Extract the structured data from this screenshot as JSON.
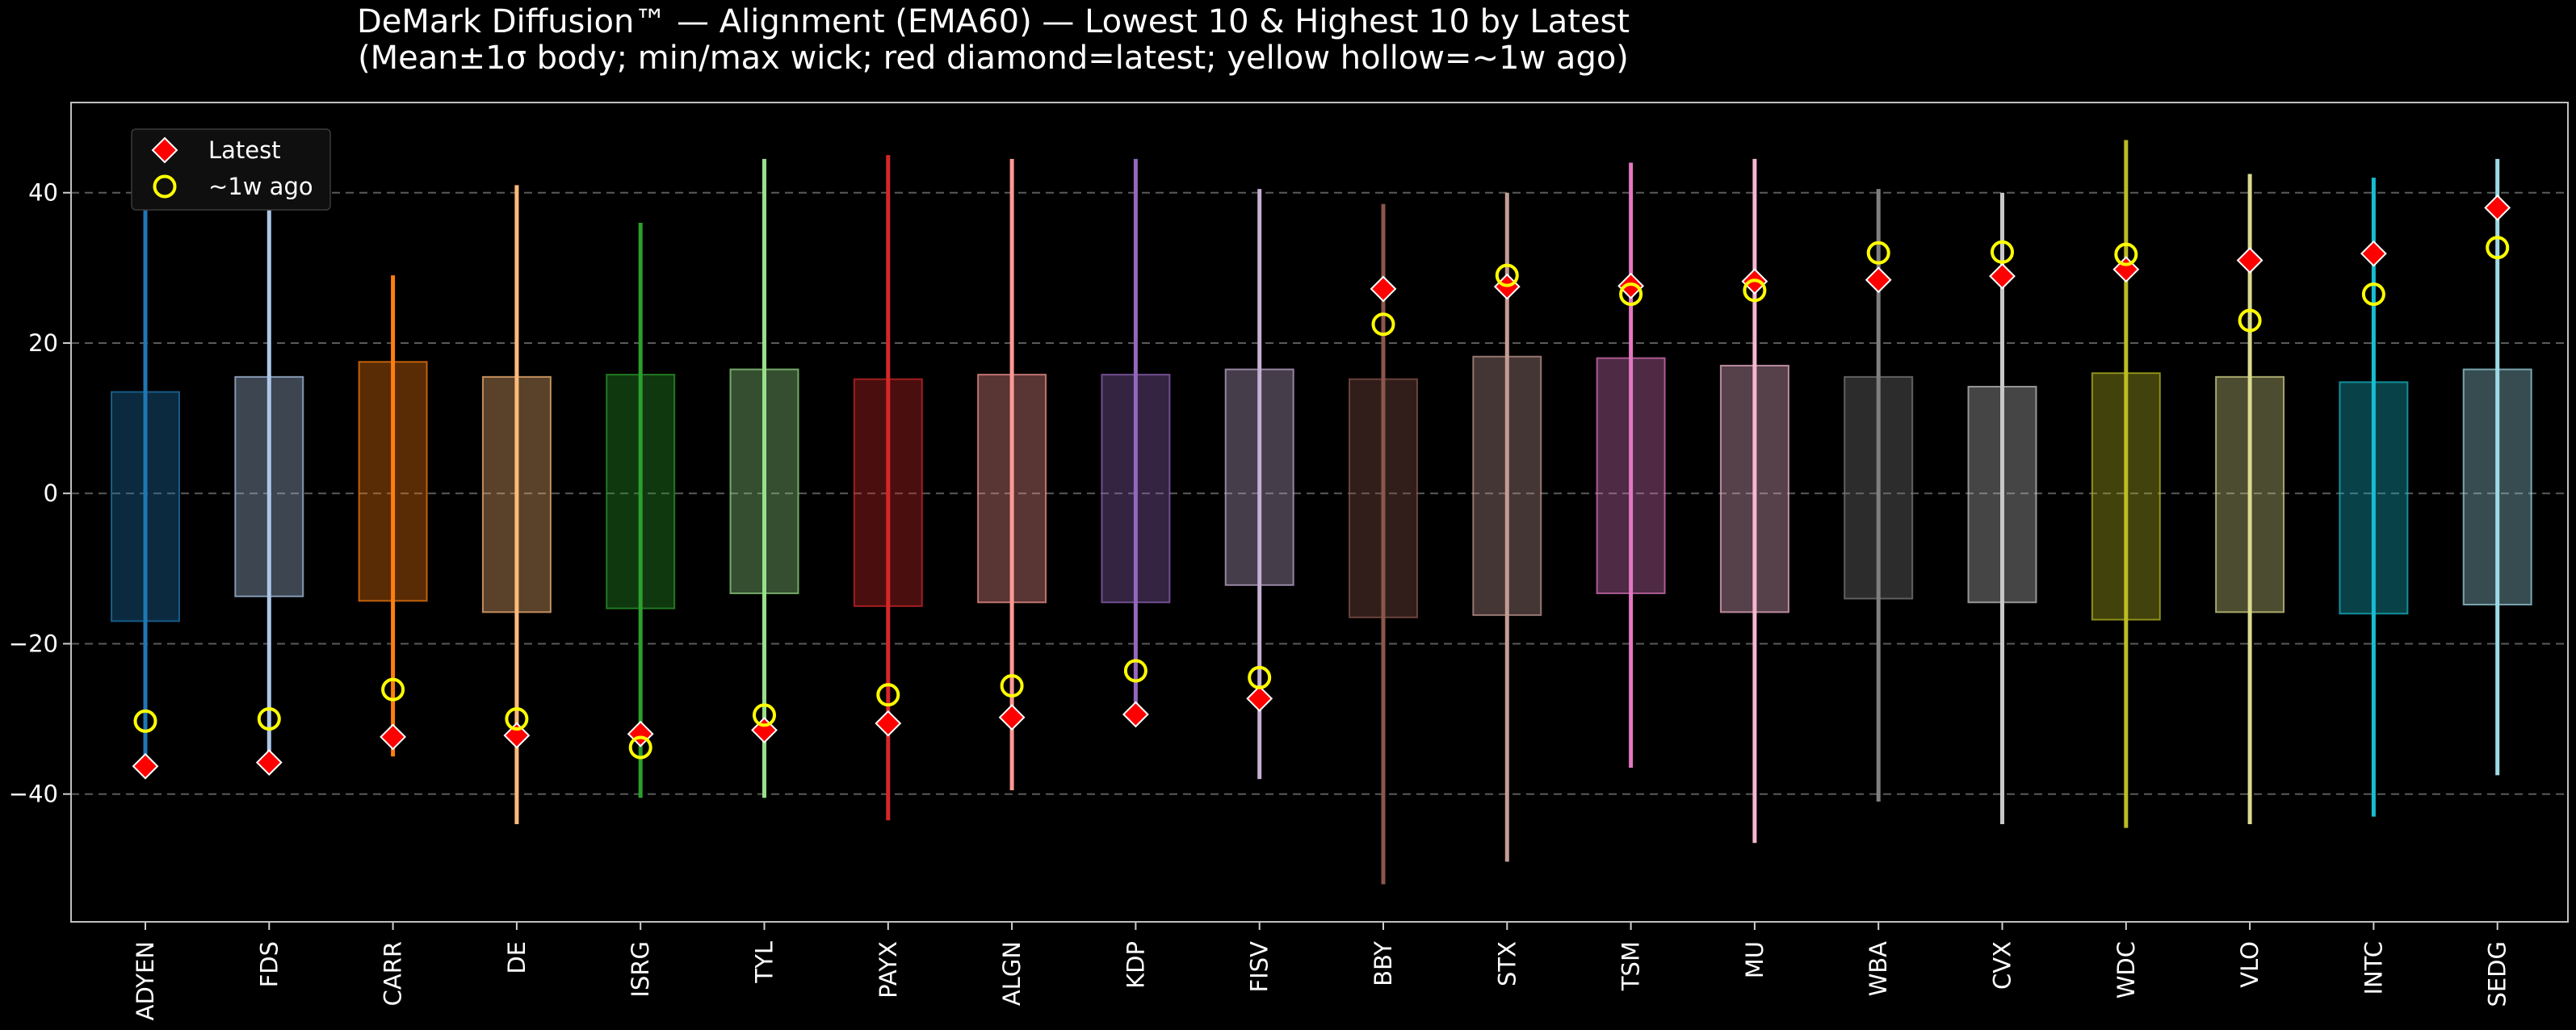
{
  "chart_data": {
    "type": "box",
    "title": "DeMark Diffusion™ — Alignment (EMA60) — Lowest 10 & Highest 10 by Latest",
    "subtitle": "(Mean±1σ body; min/max wick; red diamond=latest; yellow hollow=~1w ago)",
    "xlabel": "",
    "ylabel": "",
    "ylim": [
      -57,
      52
    ],
    "yticks": [
      -40,
      -20,
      0,
      20,
      40
    ],
    "grid": true,
    "legend_position": "top-left",
    "legend": [
      {
        "label": "Latest",
        "marker": "red-diamond"
      },
      {
        "label": "~1w ago",
        "marker": "yellow-hollow-circle"
      }
    ],
    "categories": [
      "ADYEN",
      "FDS",
      "CARR",
      "DE",
      "ISRG",
      "TYL",
      "PAYX",
      "ALGN",
      "KDP",
      "FISV",
      "BBY",
      "STX",
      "TSM",
      "MU",
      "WBA",
      "CVX",
      "WDC",
      "VLO",
      "INTC",
      "SEDG"
    ],
    "series": [
      {
        "ticker": "ADYEN",
        "color": "#1f77b4",
        "min": -36,
        "max": 38,
        "body_low": -17,
        "body_high": 13.5,
        "latest": -36.3,
        "week_ago": -30.3
      },
      {
        "ticker": "FDS",
        "color": "#aec7e8",
        "min": -37,
        "max": 44,
        "body_low": -13.7,
        "body_high": 15.5,
        "latest": -35.8,
        "week_ago": -30
      },
      {
        "ticker": "CARR",
        "color": "#ff7f0e",
        "min": -35,
        "max": 29,
        "body_low": -14.3,
        "body_high": 17.5,
        "latest": -32.4,
        "week_ago": -26.1
      },
      {
        "ticker": "DE",
        "color": "#ffbb78",
        "min": -44,
        "max": 41,
        "body_low": -15.8,
        "body_high": 15.5,
        "latest": -32.2,
        "week_ago": -30
      },
      {
        "ticker": "ISRG",
        "color": "#2ca02c",
        "min": -40.5,
        "max": 36,
        "body_low": -15.3,
        "body_high": 15.8,
        "latest": -32,
        "week_ago": -33.8
      },
      {
        "ticker": "TYL",
        "color": "#98df8a",
        "min": -40.5,
        "max": 44.5,
        "body_low": -13.3,
        "body_high": 16.5,
        "latest": -31.5,
        "week_ago": -29.5
      },
      {
        "ticker": "PAYX",
        "color": "#d62728",
        "min": -43.5,
        "max": 45,
        "body_low": -15,
        "body_high": 15.2,
        "latest": -30.6,
        "week_ago": -26.8
      },
      {
        "ticker": "ALGN",
        "color": "#ff9896",
        "min": -39.5,
        "max": 44.5,
        "body_low": -14.5,
        "body_high": 15.8,
        "latest": -29.8,
        "week_ago": -25.6
      },
      {
        "ticker": "KDP",
        "color": "#9467bd",
        "min": -29,
        "max": 44.5,
        "body_low": -14.5,
        "body_high": 15.8,
        "latest": -29.4,
        "week_ago": -23.6
      },
      {
        "ticker": "FISV",
        "color": "#c5b0d5",
        "min": -38,
        "max": 40.5,
        "body_low": -12.2,
        "body_high": 16.5,
        "latest": -27.3,
        "week_ago": -24.5
      },
      {
        "ticker": "BBY",
        "color": "#8c564b",
        "min": -52,
        "max": 38.5,
        "body_low": -16.5,
        "body_high": 15.2,
        "latest": 27.2,
        "week_ago": 22.5
      },
      {
        "ticker": "STX",
        "color": "#c49c94",
        "min": -49,
        "max": 40,
        "body_low": -16.2,
        "body_high": 18.2,
        "latest": 27.5,
        "week_ago": 29
      },
      {
        "ticker": "TSM",
        "color": "#e377c2",
        "min": -36.5,
        "max": 44,
        "body_low": -13.3,
        "body_high": 18,
        "latest": 27.6,
        "week_ago": 26.5
      },
      {
        "ticker": "MU",
        "color": "#f7b6d2",
        "min": -46.5,
        "max": 44.5,
        "body_low": -15.8,
        "body_high": 17,
        "latest": 28.2,
        "week_ago": 27
      },
      {
        "ticker": "WBA",
        "color": "#7f7f7f",
        "min": -41,
        "max": 40.5,
        "body_low": -14,
        "body_high": 15.5,
        "latest": 28.4,
        "week_ago": 32
      },
      {
        "ticker": "CVX",
        "color": "#c7c7c7",
        "min": -44,
        "max": 40,
        "body_low": -14.5,
        "body_high": 14.2,
        "latest": 28.9,
        "week_ago": 32.1
      },
      {
        "ticker": "WDC",
        "color": "#bcbd22",
        "min": -44.5,
        "max": 47,
        "body_low": -16.8,
        "body_high": 16,
        "latest": 29.8,
        "week_ago": 31.8
      },
      {
        "ticker": "VLO",
        "color": "#dbdb8d",
        "min": -44,
        "max": 42.5,
        "body_low": -15.8,
        "body_high": 15.5,
        "latest": 31,
        "week_ago": 23
      },
      {
        "ticker": "INTC",
        "color": "#17becf",
        "min": -43,
        "max": 42,
        "body_low": -16,
        "body_high": 14.8,
        "latest": 31.9,
        "week_ago": 26.5
      },
      {
        "ticker": "SEDG",
        "color": "#9edae5",
        "min": -37.5,
        "max": 44.5,
        "body_low": -14.8,
        "body_high": 16.5,
        "latest": 38,
        "week_ago": 32.7
      }
    ]
  }
}
